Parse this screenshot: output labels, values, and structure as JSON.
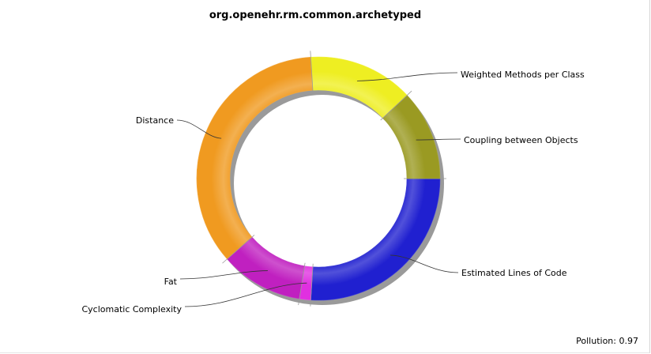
{
  "chart_data": {
    "type": "pie",
    "title": "org.openehr.rm.common.archetyped",
    "slices": [
      {
        "label": "Estimated Lines of Code",
        "value": 26.0,
        "color": "#2020d0"
      },
      {
        "label": "Cyclomatic Complexity",
        "value": 1.5,
        "color": "#e030e0"
      },
      {
        "label": "Fat",
        "value": 11.0,
        "color": "#c020c0"
      },
      {
        "label": "Distance",
        "value": 35.5,
        "color": "#f09a20"
      },
      {
        "label": "Weighted Methods per Class",
        "value": 14.0,
        "color": "#eeee22"
      },
      {
        "label": "Coupling between Objects",
        "value": 12.0,
        "color": "#9a9a22"
      }
    ],
    "legend": "none"
  },
  "footer": {
    "pollution_label": "Pollution:",
    "pollution_value": "0.97"
  }
}
